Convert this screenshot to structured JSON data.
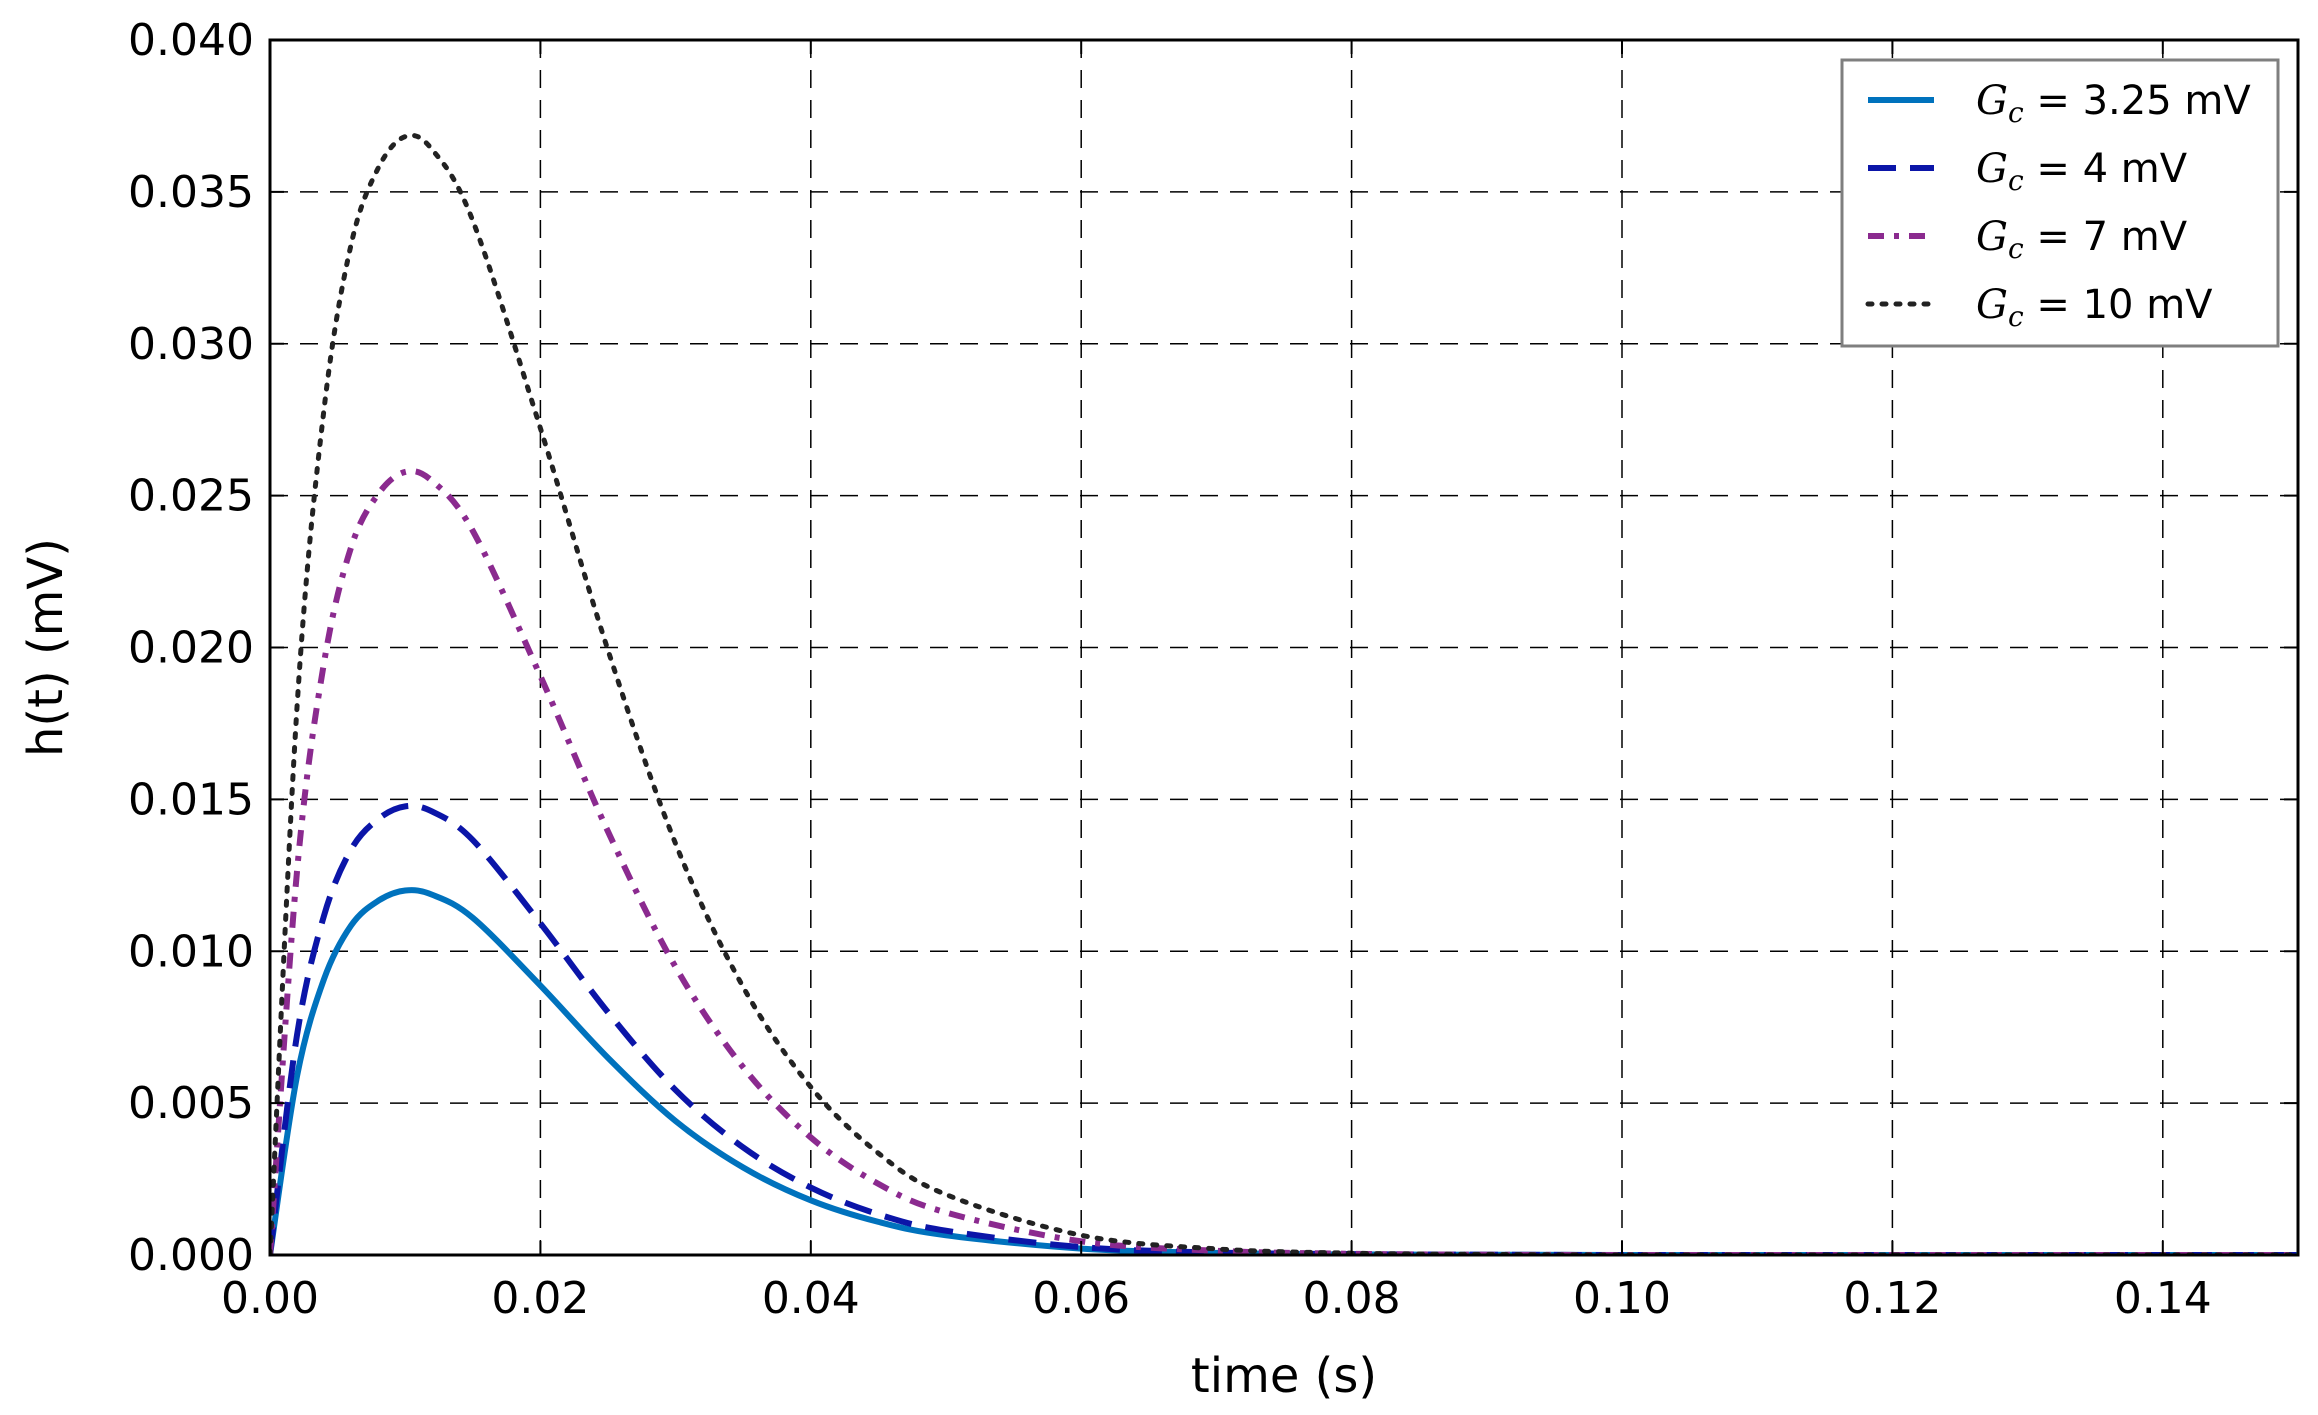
{
  "chart_data": {
    "type": "line",
    "xlabel": "time (s)",
    "ylabel": "h(t) (mV)",
    "xlim": [
      0.0,
      0.15
    ],
    "ylim": [
      0.0,
      0.04
    ],
    "xticks": [
      0.0,
      0.02,
      0.04,
      0.06,
      0.08,
      0.1,
      0.12,
      0.14
    ],
    "xtick_labels": [
      "0.00",
      "0.02",
      "0.04",
      "0.06",
      "0.08",
      "0.10",
      "0.12",
      "0.14"
    ],
    "yticks": [
      0.0,
      0.005,
      0.01,
      0.015,
      0.02,
      0.025,
      0.03,
      0.035,
      0.04
    ],
    "ytick_labels": [
      "0.000",
      "0.005",
      "0.010",
      "0.015",
      "0.020",
      "0.025",
      "0.030",
      "0.035",
      "0.040"
    ],
    "grid": true,
    "legend_position": "top-right",
    "x": [
      0.0,
      0.002,
      0.004,
      0.006,
      0.008,
      0.01,
      0.012,
      0.015,
      0.02,
      0.025,
      0.03,
      0.035,
      0.04,
      0.045,
      0.05,
      0.06,
      0.07,
      0.08,
      0.09,
      0.1,
      0.12,
      0.15
    ],
    "series": [
      {
        "name": "G_c = 3.25 mV",
        "legend_symbol": "G",
        "legend_subscript": "c",
        "legend_value": " = 3.25 mV",
        "style": "solid",
        "color": "#0072bd",
        "values": [
          0.0,
          0.00589,
          0.00909,
          0.01085,
          0.01166,
          0.012,
          0.01186,
          0.0111,
          0.00887,
          0.00649,
          0.00441,
          0.00288,
          0.0018,
          0.00109,
          0.00065,
          0.00021,
          7e-05,
          2e-05,
          1e-05,
          0.0,
          0.0,
          0.0
        ]
      },
      {
        "name": "G_c = 4 mV",
        "legend_symbol": "G",
        "legend_subscript": "c",
        "legend_value": " = 4 mV",
        "style": "dashed",
        "color": "#0b15a8",
        "values": [
          0.0,
          0.00725,
          0.01118,
          0.01335,
          0.01435,
          0.01477,
          0.0146,
          0.01366,
          0.01092,
          0.00799,
          0.00543,
          0.00354,
          0.00222,
          0.00134,
          0.0008,
          0.00026,
          8e-05,
          3e-05,
          1e-05,
          0.0,
          0.0,
          0.0
        ]
      },
      {
        "name": "G_c = 7 mV",
        "legend_symbol": "G",
        "legend_subscript": "c",
        "legend_value": " = 7 mV",
        "style": "dashdot",
        "color": "#8b2a8f",
        "values": [
          0.0,
          0.01264,
          0.01951,
          0.0233,
          0.02505,
          0.02578,
          0.02548,
          0.02384,
          0.01906,
          0.01394,
          0.00948,
          0.00618,
          0.00387,
          0.00234,
          0.0014,
          0.00045,
          0.00014,
          4e-05,
          1e-05,
          0.0,
          0.0,
          0.0
        ]
      },
      {
        "name": "G_c = 10 mV",
        "legend_symbol": "G",
        "legend_subscript": "c",
        "legend_value": " = 10 mV",
        "style": "dotted",
        "color": "#222222",
        "values": [
          0.0,
          0.01805,
          0.02786,
          0.03327,
          0.03578,
          0.03682,
          0.03639,
          0.03405,
          0.02722,
          0.01991,
          0.01354,
          0.00882,
          0.00553,
          0.00335,
          0.00199,
          0.00065,
          0.0002,
          6e-05,
          2e-05,
          0.0,
          0.0,
          0.0
        ]
      }
    ]
  }
}
